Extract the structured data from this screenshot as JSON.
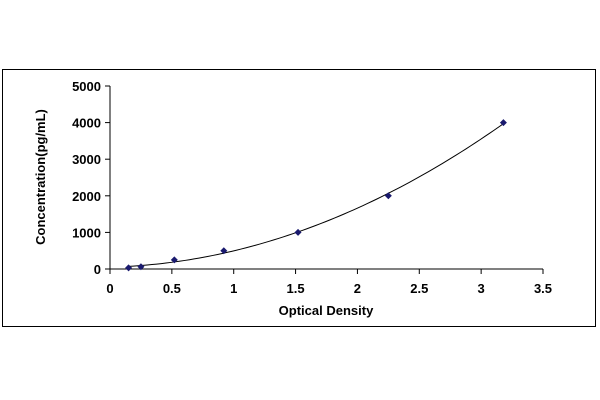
{
  "chart_data": {
    "type": "scatter",
    "title": "",
    "xlabel": "Optical Density",
    "ylabel": "Concentration(pg/mL)",
    "xlim": [
      0,
      3.5
    ],
    "ylim": [
      0,
      5000
    ],
    "x_ticks": [
      0,
      0.5,
      1,
      1.5,
      2,
      2.5,
      3,
      3.5
    ],
    "x_tick_labels": [
      "0",
      "0.5",
      "1",
      "1.5",
      "2",
      "2.5",
      "3",
      "3.5"
    ],
    "y_ticks": [
      0,
      1000,
      2000,
      3000,
      4000,
      5000
    ],
    "y_tick_labels": [
      "0",
      "1000",
      "2000",
      "3000",
      "4000",
      "5000"
    ],
    "grid": false,
    "legend": "none",
    "series": [
      {
        "points": [
          {
            "x": 0.15,
            "y": 31.25
          },
          {
            "x": 0.25,
            "y": 62.5
          },
          {
            "x": 0.52,
            "y": 250
          },
          {
            "x": 0.92,
            "y": 500
          },
          {
            "x": 1.52,
            "y": 1000
          },
          {
            "x": 2.25,
            "y": 2000
          },
          {
            "x": 3.18,
            "y": 4000
          }
        ],
        "trendline": "polynomial",
        "marker_color": "#1a1a6e",
        "line_color": "#000000"
      }
    ]
  }
}
